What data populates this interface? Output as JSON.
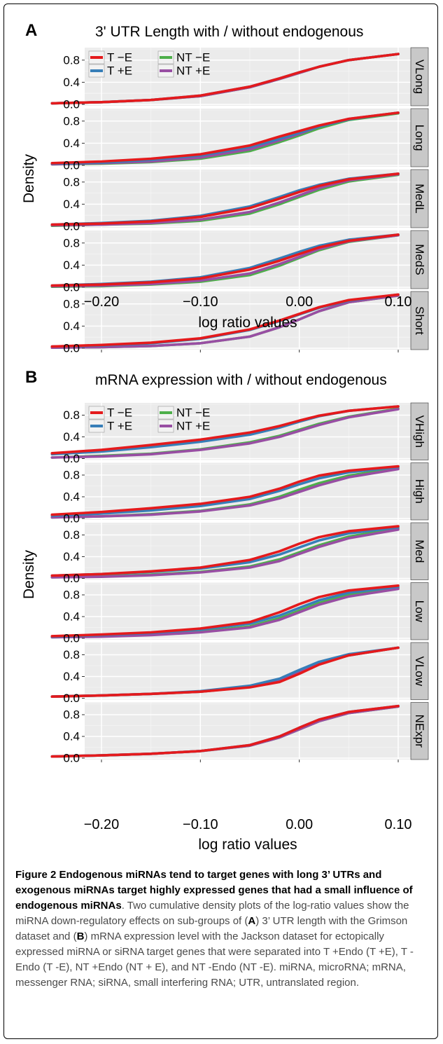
{
  "chart_data": [
    {
      "type": "line",
      "panel_letter": "A",
      "title": "3' UTR Length with / without endogenous",
      "xlabel": "log ratio values",
      "ylabel": "Density",
      "xlim": [
        -0.26,
        0.11
      ],
      "ylim": [
        0,
        1
      ],
      "x_ticks": [
        -0.2,
        -0.1,
        0.0,
        0.1
      ],
      "x_tick_labels": [
        "−0.20",
        "−0.10",
        "0.00",
        "0.10"
      ],
      "y_ticks": [
        0.0,
        0.4,
        0.8
      ],
      "y_tick_labels": [
        "0.0",
        "0.4",
        "0.8"
      ],
      "grid": true,
      "legend_position": "top-left (first facet)",
      "legend": [
        {
          "label": "T −E",
          "color": "#e41a1c"
        },
        {
          "label": "T +E",
          "color": "#377eb8"
        },
        {
          "label": "NT −E",
          "color": "#4daf4a"
        },
        {
          "label": "NT +E",
          "color": "#984ea3"
        }
      ],
      "x": [
        -0.25,
        -0.2,
        -0.15,
        -0.1,
        -0.05,
        -0.02,
        0.0,
        0.02,
        0.05,
        0.1
      ],
      "facets": [
        {
          "label": "VLong",
          "series": [
            {
              "name": "T −E",
              "values": [
                0.02,
                0.04,
                0.08,
                0.16,
                0.32,
                0.47,
                0.58,
                0.68,
                0.8,
                0.91
              ]
            },
            {
              "name": "T +E",
              "values": [
                0.02,
                0.04,
                0.08,
                0.16,
                0.32,
                0.47,
                0.58,
                0.68,
                0.8,
                0.91
              ]
            },
            {
              "name": "NT −E",
              "values": [
                0.02,
                0.04,
                0.08,
                0.15,
                0.31,
                0.46,
                0.57,
                0.68,
                0.8,
                0.91
              ]
            },
            {
              "name": "NT +E",
              "values": [
                0.02,
                0.04,
                0.08,
                0.15,
                0.31,
                0.46,
                0.57,
                0.68,
                0.8,
                0.91
              ]
            }
          ]
        },
        {
          "label": "Long",
          "series": [
            {
              "name": "T −E",
              "values": [
                0.04,
                0.07,
                0.12,
                0.2,
                0.36,
                0.52,
                0.62,
                0.72,
                0.84,
                0.95
              ]
            },
            {
              "name": "T +E",
              "values": [
                0.03,
                0.05,
                0.1,
                0.18,
                0.33,
                0.48,
                0.59,
                0.7,
                0.83,
                0.95
              ]
            },
            {
              "name": "NT −E",
              "values": [
                0.02,
                0.03,
                0.06,
                0.12,
                0.26,
                0.42,
                0.54,
                0.67,
                0.82,
                0.94
              ]
            },
            {
              "name": "NT +E",
              "values": [
                0.02,
                0.04,
                0.07,
                0.14,
                0.29,
                0.45,
                0.57,
                0.7,
                0.84,
                0.95
              ]
            }
          ]
        },
        {
          "label": "MedL",
          "series": [
            {
              "name": "T −E",
              "values": [
                0.03,
                0.05,
                0.09,
                0.17,
                0.33,
                0.5,
                0.62,
                0.73,
                0.85,
                0.95
              ]
            },
            {
              "name": "T +E",
              "values": [
                0.03,
                0.06,
                0.1,
                0.19,
                0.36,
                0.53,
                0.65,
                0.75,
                0.86,
                0.95
              ]
            },
            {
              "name": "NT −E",
              "values": [
                0.01,
                0.03,
                0.05,
                0.1,
                0.23,
                0.4,
                0.53,
                0.66,
                0.81,
                0.93
              ]
            },
            {
              "name": "NT +E",
              "values": [
                0.02,
                0.03,
                0.06,
                0.12,
                0.26,
                0.43,
                0.56,
                0.69,
                0.83,
                0.94
              ]
            }
          ]
        },
        {
          "label": "MedS",
          "series": [
            {
              "name": "T −E",
              "values": [
                0.03,
                0.05,
                0.09,
                0.16,
                0.32,
                0.48,
                0.6,
                0.72,
                0.84,
                0.95
              ]
            },
            {
              "name": "T +E",
              "values": [
                0.03,
                0.06,
                0.1,
                0.18,
                0.35,
                0.52,
                0.64,
                0.75,
                0.86,
                0.95
              ]
            },
            {
              "name": "NT −E",
              "values": [
                0.01,
                0.02,
                0.05,
                0.1,
                0.22,
                0.39,
                0.53,
                0.67,
                0.82,
                0.94
              ]
            },
            {
              "name": "NT +E",
              "values": [
                0.02,
                0.03,
                0.06,
                0.12,
                0.25,
                0.42,
                0.55,
                0.69,
                0.83,
                0.94
              ]
            }
          ]
        },
        {
          "label": "Short",
          "series": [
            {
              "name": "T −E",
              "values": [
                0.03,
                0.06,
                0.1,
                0.18,
                0.34,
                0.5,
                0.62,
                0.74,
                0.87,
                0.97
              ]
            },
            {
              "name": "T +E",
              "values": [
                0.03,
                0.05,
                0.09,
                0.17,
                0.33,
                0.49,
                0.61,
                0.73,
                0.86,
                0.97
              ]
            },
            {
              "name": "NT −E",
              "values": [
                0.01,
                0.02,
                0.04,
                0.09,
                0.21,
                0.38,
                0.52,
                0.67,
                0.83,
                0.95
              ]
            },
            {
              "name": "NT +E",
              "values": [
                0.01,
                0.02,
                0.04,
                0.09,
                0.21,
                0.38,
                0.52,
                0.67,
                0.83,
                0.95
              ]
            }
          ]
        }
      ]
    },
    {
      "type": "line",
      "panel_letter": "B",
      "title": "mRNA expression with / without endogenous",
      "xlabel": "log ratio values",
      "ylabel": "Density",
      "xlim": [
        -0.26,
        0.11
      ],
      "ylim": [
        0,
        1
      ],
      "x_ticks": [
        -0.2,
        -0.1,
        0.0,
        0.1
      ],
      "x_tick_labels": [
        "−0.20",
        "−0.10",
        "0.00",
        "0.10"
      ],
      "y_ticks": [
        0.0,
        0.4,
        0.8
      ],
      "y_tick_labels": [
        "0.0",
        "0.4",
        "0.8"
      ],
      "grid": true,
      "legend_position": "top-left (first facet)",
      "legend": [
        {
          "label": "T −E",
          "color": "#e41a1c"
        },
        {
          "label": "T +E",
          "color": "#377eb8"
        },
        {
          "label": "NT −E",
          "color": "#4daf4a"
        },
        {
          "label": "NT +E",
          "color": "#984ea3"
        }
      ],
      "x": [
        -0.25,
        -0.2,
        -0.15,
        -0.1,
        -0.05,
        -0.02,
        0.0,
        0.02,
        0.05,
        0.1
      ],
      "facets": [
        {
          "label": "VHigh",
          "series": [
            {
              "name": "T −E",
              "values": [
                0.1,
                0.16,
                0.25,
                0.35,
                0.48,
                0.6,
                0.7,
                0.79,
                0.88,
                0.96
              ]
            },
            {
              "name": "T +E",
              "values": [
                0.08,
                0.13,
                0.21,
                0.31,
                0.44,
                0.57,
                0.68,
                0.78,
                0.88,
                0.96
              ]
            },
            {
              "name": "NT −E",
              "values": [
                0.02,
                0.05,
                0.09,
                0.17,
                0.3,
                0.42,
                0.53,
                0.64,
                0.77,
                0.92
              ]
            },
            {
              "name": "NT +E",
              "values": [
                0.02,
                0.04,
                0.08,
                0.16,
                0.28,
                0.4,
                0.51,
                0.62,
                0.76,
                0.91
              ]
            }
          ]
        },
        {
          "label": "High",
          "series": [
            {
              "name": "T −E",
              "values": [
                0.07,
                0.12,
                0.19,
                0.27,
                0.4,
                0.55,
                0.68,
                0.79,
                0.88,
                0.96
              ]
            },
            {
              "name": "T +E",
              "values": [
                0.05,
                0.09,
                0.15,
                0.23,
                0.36,
                0.51,
                0.63,
                0.74,
                0.85,
                0.95
              ]
            },
            {
              "name": "NT −E",
              "values": [
                0.02,
                0.04,
                0.08,
                0.14,
                0.26,
                0.4,
                0.53,
                0.65,
                0.79,
                0.93
              ]
            },
            {
              "name": "NT +E",
              "values": [
                0.02,
                0.04,
                0.07,
                0.13,
                0.24,
                0.37,
                0.49,
                0.61,
                0.76,
                0.91
              ]
            }
          ]
        },
        {
          "label": "Med",
          "series": [
            {
              "name": "T −E",
              "values": [
                0.05,
                0.08,
                0.13,
                0.2,
                0.34,
                0.5,
                0.64,
                0.76,
                0.87,
                0.96
              ]
            },
            {
              "name": "T +E",
              "values": [
                0.05,
                0.08,
                0.12,
                0.18,
                0.3,
                0.44,
                0.57,
                0.7,
                0.83,
                0.94
              ]
            },
            {
              "name": "NT −E",
              "values": [
                0.02,
                0.04,
                0.07,
                0.12,
                0.22,
                0.35,
                0.48,
                0.61,
                0.77,
                0.92
              ]
            },
            {
              "name": "NT +E",
              "values": [
                0.02,
                0.03,
                0.06,
                0.11,
                0.2,
                0.32,
                0.45,
                0.58,
                0.74,
                0.9
              ]
            }
          ]
        },
        {
          "label": "Low",
          "series": [
            {
              "name": "T −E",
              "values": [
                0.04,
                0.07,
                0.11,
                0.18,
                0.3,
                0.48,
                0.63,
                0.76,
                0.88,
                0.97
              ]
            },
            {
              "name": "T +E",
              "values": [
                0.03,
                0.06,
                0.1,
                0.16,
                0.27,
                0.42,
                0.56,
                0.7,
                0.84,
                0.95
              ]
            },
            {
              "name": "NT −E",
              "values": [
                0.02,
                0.04,
                0.07,
                0.12,
                0.22,
                0.37,
                0.51,
                0.65,
                0.8,
                0.93
              ]
            },
            {
              "name": "NT +E",
              "values": [
                0.02,
                0.03,
                0.06,
                0.11,
                0.2,
                0.34,
                0.48,
                0.62,
                0.77,
                0.91
              ]
            }
          ]
        },
        {
          "label": "VLow",
          "series": [
            {
              "name": "T −E",
              "values": [
                0.03,
                0.05,
                0.08,
                0.12,
                0.2,
                0.3,
                0.45,
                0.62,
                0.79,
                0.93
              ]
            },
            {
              "name": "T +E",
              "values": [
                0.03,
                0.05,
                0.08,
                0.13,
                0.23,
                0.36,
                0.52,
                0.67,
                0.81,
                0.93
              ]
            },
            {
              "name": "NT −E",
              "values": [
                0.03,
                0.05,
                0.08,
                0.12,
                0.21,
                0.33,
                0.48,
                0.63,
                0.79,
                0.93
              ]
            },
            {
              "name": "NT +E",
              "values": [
                0.03,
                0.05,
                0.08,
                0.12,
                0.21,
                0.33,
                0.48,
                0.64,
                0.79,
                0.93
              ]
            }
          ]
        },
        {
          "label": "NExpr",
          "series": [
            {
              "name": "T −E",
              "values": [
                0.03,
                0.05,
                0.08,
                0.13,
                0.24,
                0.4,
                0.56,
                0.71,
                0.85,
                0.96
              ]
            },
            {
              "name": "T +E",
              "values": [
                0.03,
                0.05,
                0.08,
                0.13,
                0.24,
                0.4,
                0.56,
                0.71,
                0.85,
                0.96
              ]
            },
            {
              "name": "NT −E",
              "values": [
                0.03,
                0.05,
                0.08,
                0.13,
                0.23,
                0.38,
                0.53,
                0.68,
                0.83,
                0.95
              ]
            },
            {
              "name": "NT +E",
              "values": [
                0.03,
                0.05,
                0.08,
                0.13,
                0.23,
                0.38,
                0.53,
                0.68,
                0.83,
                0.95
              ]
            }
          ]
        }
      ]
    }
  ],
  "caption": {
    "title": "Figure 2 Endogenous miRNAs tend to target genes with long 3’ UTRs and exogenous miRNAs target highly expressed genes that had a small influence of endogenous miRNAs",
    "text_1": ". Two cumulative density plots of the log-ratio values show the miRNA down-regulatory effects on sub-groups of (",
    "ref_a": "A",
    "text_2": ") 3’ UTR length with the Grimson dataset and (",
    "ref_b": "B",
    "text_3": ") mRNA expression level with the Jackson dataset for ectopically expressed miRNA or siRNA target genes that were separated into T +Endo (T +E), T -Endo (T -E), NT +Endo (NT + E), and NT -Endo (NT -E). miRNA, microRNA; mRNA, messenger RNA; siRNA, small interfering RNA; UTR, untranslated region."
  }
}
